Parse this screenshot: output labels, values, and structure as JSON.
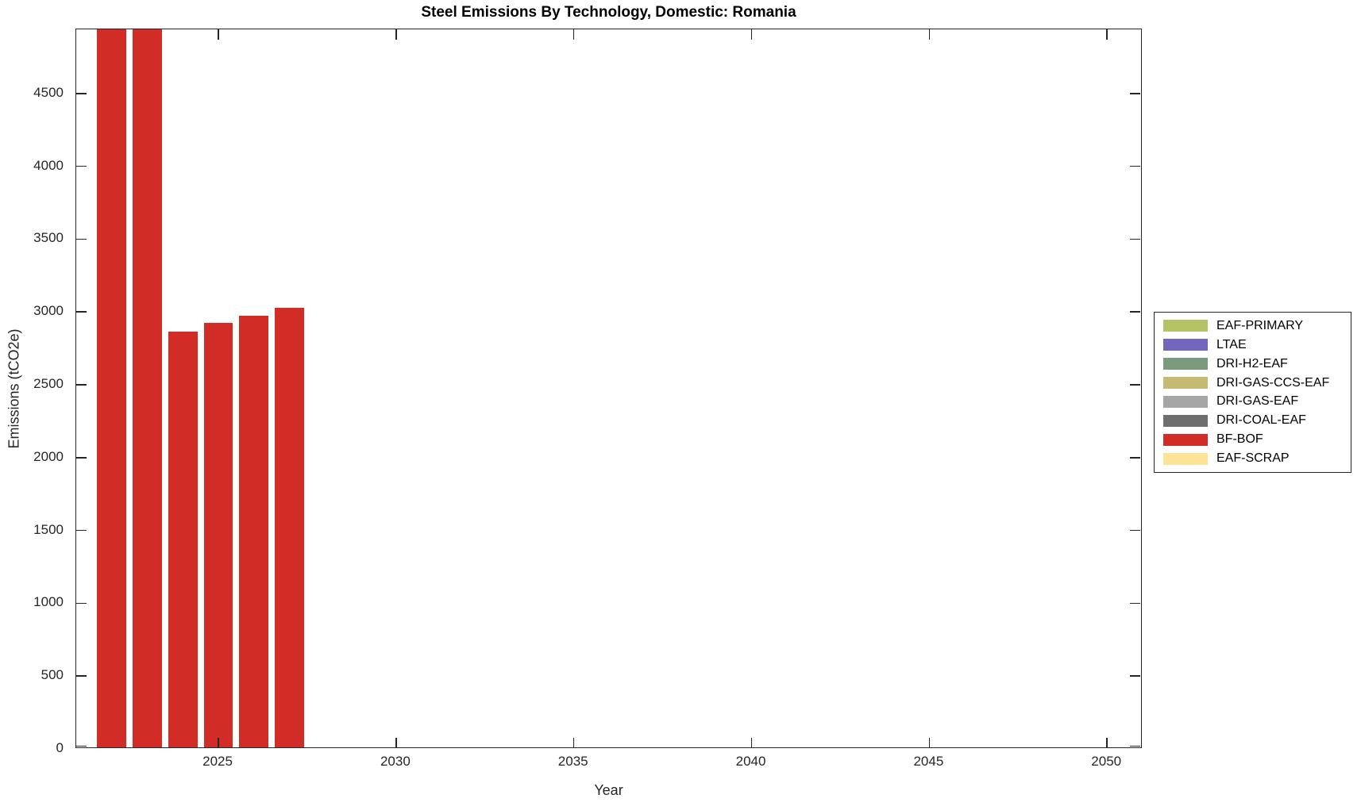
{
  "chart_data": {
    "type": "bar",
    "title": "Steel Emissions By Technology, Domestic: Romania",
    "xlabel": "Year",
    "ylabel": "Emissions (tCO2e)",
    "xlim": [
      2021,
      2051
    ],
    "ylim": [
      0,
      4940
    ],
    "xticks": [
      2025,
      2030,
      2035,
      2040,
      2045,
      2050
    ],
    "yticks": [
      0,
      500,
      1000,
      1500,
      2000,
      2500,
      3000,
      3500,
      4000,
      4500
    ],
    "grid": false,
    "legend_position": "right-outside",
    "bar_width_years": 0.82,
    "categories": [
      2022,
      2023,
      2024,
      2025,
      2026,
      2027
    ],
    "series": [
      {
        "name": "BF-BOF",
        "color": "#d22c27",
        "x": [
          2022,
          2023,
          2024,
          2025,
          2026,
          2027
        ],
        "values": [
          4940,
          4940,
          2865,
          2925,
          2975,
          3030
        ],
        "clipped_at_ymax": [
          true,
          true,
          false,
          false,
          false,
          false
        ]
      }
    ],
    "legend": [
      {
        "label": "EAF-PRIMARY",
        "color": "#b5c266"
      },
      {
        "label": "LTAE",
        "color": "#7266bd"
      },
      {
        "label": "DRI-H2-EAF",
        "color": "#7a9b7e"
      },
      {
        "label": "DRI-GAS-CCS-EAF",
        "color": "#c6ba72"
      },
      {
        "label": "DRI-GAS-EAF",
        "color": "#a6a6a6"
      },
      {
        "label": "DRI-COAL-EAF",
        "color": "#6e6e6e"
      },
      {
        "label": "BF-BOF",
        "color": "#d22c27"
      },
      {
        "label": "EAF-SCRAP",
        "color": "#fde395"
      }
    ],
    "colors": {
      "axis": "#262626",
      "background": "#ffffff",
      "title_text": "#000000"
    }
  }
}
